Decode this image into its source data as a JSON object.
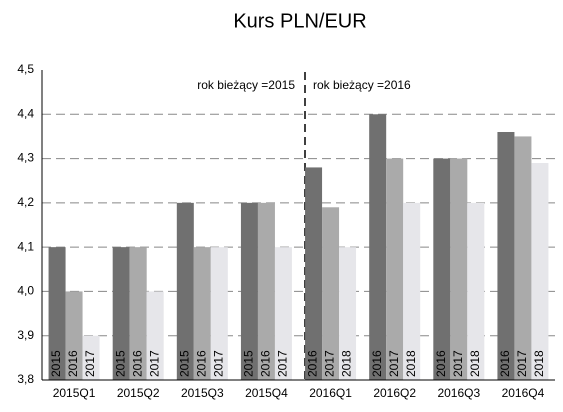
{
  "chart_data": {
    "type": "bar",
    "title": "Kurs PLN/EUR",
    "categories": [
      "2015Q1",
      "2015Q2",
      "2015Q3",
      "2015Q4",
      "2016Q1",
      "2016Q2",
      "2016Q3",
      "2016Q4"
    ],
    "series": [
      {
        "color": "#707070",
        "values": [
          4.1,
          4.1,
          4.2,
          4.2,
          4.28,
          4.4,
          4.3,
          4.36
        ],
        "labels": [
          "2015",
          "2015",
          "2015",
          "2015",
          "2016",
          "2016",
          "2016",
          "2016"
        ]
      },
      {
        "color": "#aaaaaa",
        "values": [
          4.0,
          4.1,
          4.1,
          4.2,
          4.19,
          4.3,
          4.3,
          4.35
        ],
        "labels": [
          "2016",
          "2016",
          "2016",
          "2016",
          "2017",
          "2017",
          "2017",
          "2017"
        ]
      },
      {
        "color": "#e6e6ea",
        "values": [
          3.9,
          4.0,
          4.1,
          4.1,
          4.1,
          4.2,
          4.2,
          4.29
        ],
        "labels": [
          "2017",
          "2017",
          "2017",
          "2017",
          "2018",
          "2018",
          "2018",
          "2018"
        ]
      }
    ],
    "annotations": [
      "rok bieżący =2015",
      "rok bieżący =2016"
    ],
    "ylim": [
      3.8,
      4.5
    ],
    "yticks": [
      {
        "value": 3.8,
        "label": "3,8"
      },
      {
        "value": 3.9,
        "label": "3,9"
      },
      {
        "value": 4.0,
        "label": "4,0"
      },
      {
        "value": 4.1,
        "label": "4,1"
      },
      {
        "value": 4.2,
        "label": "4,2"
      },
      {
        "value": 4.3,
        "label": "4,3"
      },
      {
        "value": 4.4,
        "label": "4,4"
      },
      {
        "value": 4.5,
        "label": "4,5"
      }
    ],
    "grid": true
  }
}
